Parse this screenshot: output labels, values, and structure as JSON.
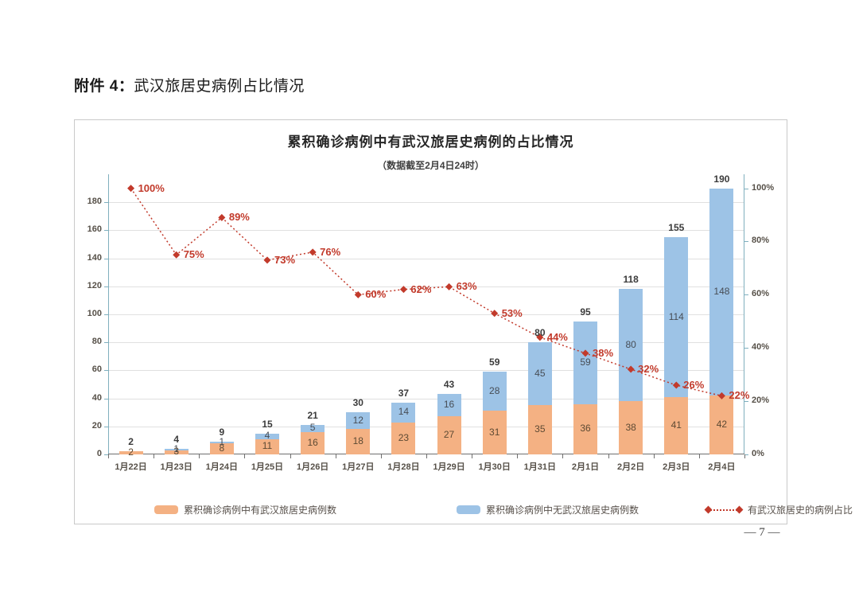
{
  "page": {
    "doc_label": "附件 4：",
    "doc_title": "武汉旅居史病例占比情况",
    "page_number": "— 7 —"
  },
  "chart": {
    "title": "累积确诊病例中有武汉旅居史病例的占比情况",
    "subtitle": "（数据截至2月4日24时）"
  },
  "chart_data": {
    "type": "bar",
    "subtype": "stacked-bars-with-percentage-line",
    "title": "累积确诊病例中有武汉旅居史病例的占比情况",
    "subtitle": "（数据截至2月4日24时）",
    "categories": [
      "1月22日",
      "1月23日",
      "1月24日",
      "1月25日",
      "1月26日",
      "1月27日",
      "1月28日",
      "1月29日",
      "1月30日",
      "1月31日",
      "2月1日",
      "2月2日",
      "2月3日",
      "2月4日"
    ],
    "series": [
      {
        "name": "累积确诊病例中有武汉旅居史病例数",
        "type": "bar",
        "stack": "total",
        "color": "#f4b183",
        "values": [
          2,
          3,
          8,
          11,
          16,
          18,
          23,
          27,
          31,
          35,
          36,
          38,
          41,
          42
        ]
      },
      {
        "name": "累积确诊病例中无武汉旅居史病例数",
        "type": "bar",
        "stack": "total",
        "color": "#9dc3e6",
        "values": [
          0,
          1,
          1,
          4,
          5,
          12,
          14,
          16,
          28,
          45,
          59,
          80,
          114,
          148
        ]
      },
      {
        "name": "有武汉旅居史的病例占比",
        "type": "line",
        "axis": "right",
        "color": "#c23a2b",
        "line_style": "dotted",
        "marker": "diamond",
        "values": [
          100,
          75,
          89,
          73,
          76,
          60,
          62,
          63,
          53,
          44,
          38,
          32,
          26,
          22
        ],
        "unit": "%"
      }
    ],
    "totals": [
      2,
      4,
      9,
      15,
      21,
      30,
      37,
      43,
      59,
      80,
      95,
      118,
      155,
      190
    ],
    "left_axis": {
      "min": 0,
      "max": 200,
      "tick_step": 20,
      "ticks": [
        0,
        20,
        40,
        60,
        80,
        100,
        120,
        140,
        160,
        180
      ]
    },
    "right_axis": {
      "min": 0,
      "max": 100,
      "tick_step": 20,
      "ticks": [
        "0%",
        "20%",
        "40%",
        "60%",
        "80%",
        "100%"
      ],
      "unit": "%"
    },
    "grid": true,
    "legend_position": "bottom"
  }
}
